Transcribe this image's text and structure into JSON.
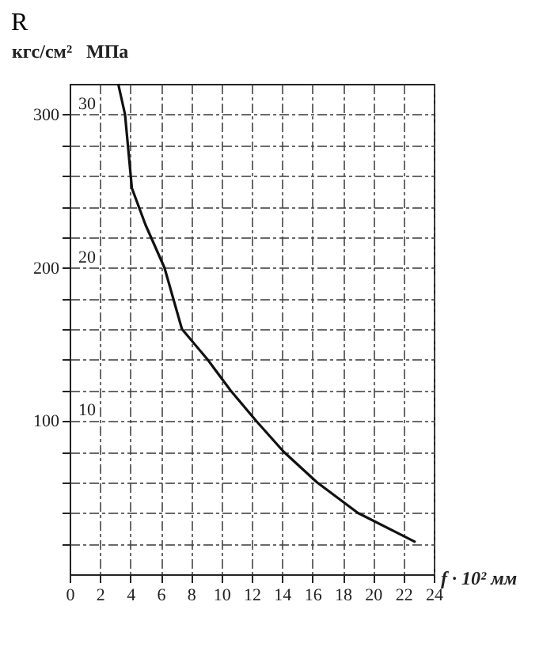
{
  "chart_data": {
    "type": "line",
    "title": "R",
    "xlabel": "f · 10² мм",
    "ylabel": "кгс/см²",
    "y2label": "МПа",
    "x": [
      3.2,
      3.65,
      4.1,
      5.0,
      6.25,
      7.4,
      9.1,
      10.6,
      12.3,
      14.1,
      16.3,
      19.0,
      22.8
    ],
    "series": [
      {
        "color": "#111111",
        "values": [
          320,
          300,
          252,
          228,
          200,
          160,
          140,
          120,
          100,
          80,
          60,
          40,
          21
        ]
      }
    ],
    "xlim": [
      0,
      24
    ],
    "xticks": [
      0,
      2,
      4,
      6,
      8,
      10,
      12,
      14,
      16,
      18,
      20,
      22,
      24
    ],
    "ylim": [
      0,
      320
    ],
    "yticks": [
      {
        "value": 20,
        "label": null
      },
      {
        "value": 40,
        "label": null
      },
      {
        "value": 60,
        "label": null
      },
      {
        "value": 80,
        "label": null
      },
      100,
      {
        "value": 120,
        "label": null
      },
      {
        "value": 140,
        "label": null
      },
      {
        "value": 160,
        "label": null
      },
      {
        "value": 180,
        "label": null
      },
      200,
      {
        "value": 220,
        "label": null
      },
      {
        "value": 240,
        "label": null
      },
      {
        "value": 260,
        "label": null
      },
      {
        "value": 280,
        "label": null
      },
      300
    ],
    "y2lim": [
      0,
      32
    ],
    "y2ticks": [
      10,
      20,
      30
    ],
    "grid": true,
    "marker": "none",
    "line_style": "solid"
  }
}
